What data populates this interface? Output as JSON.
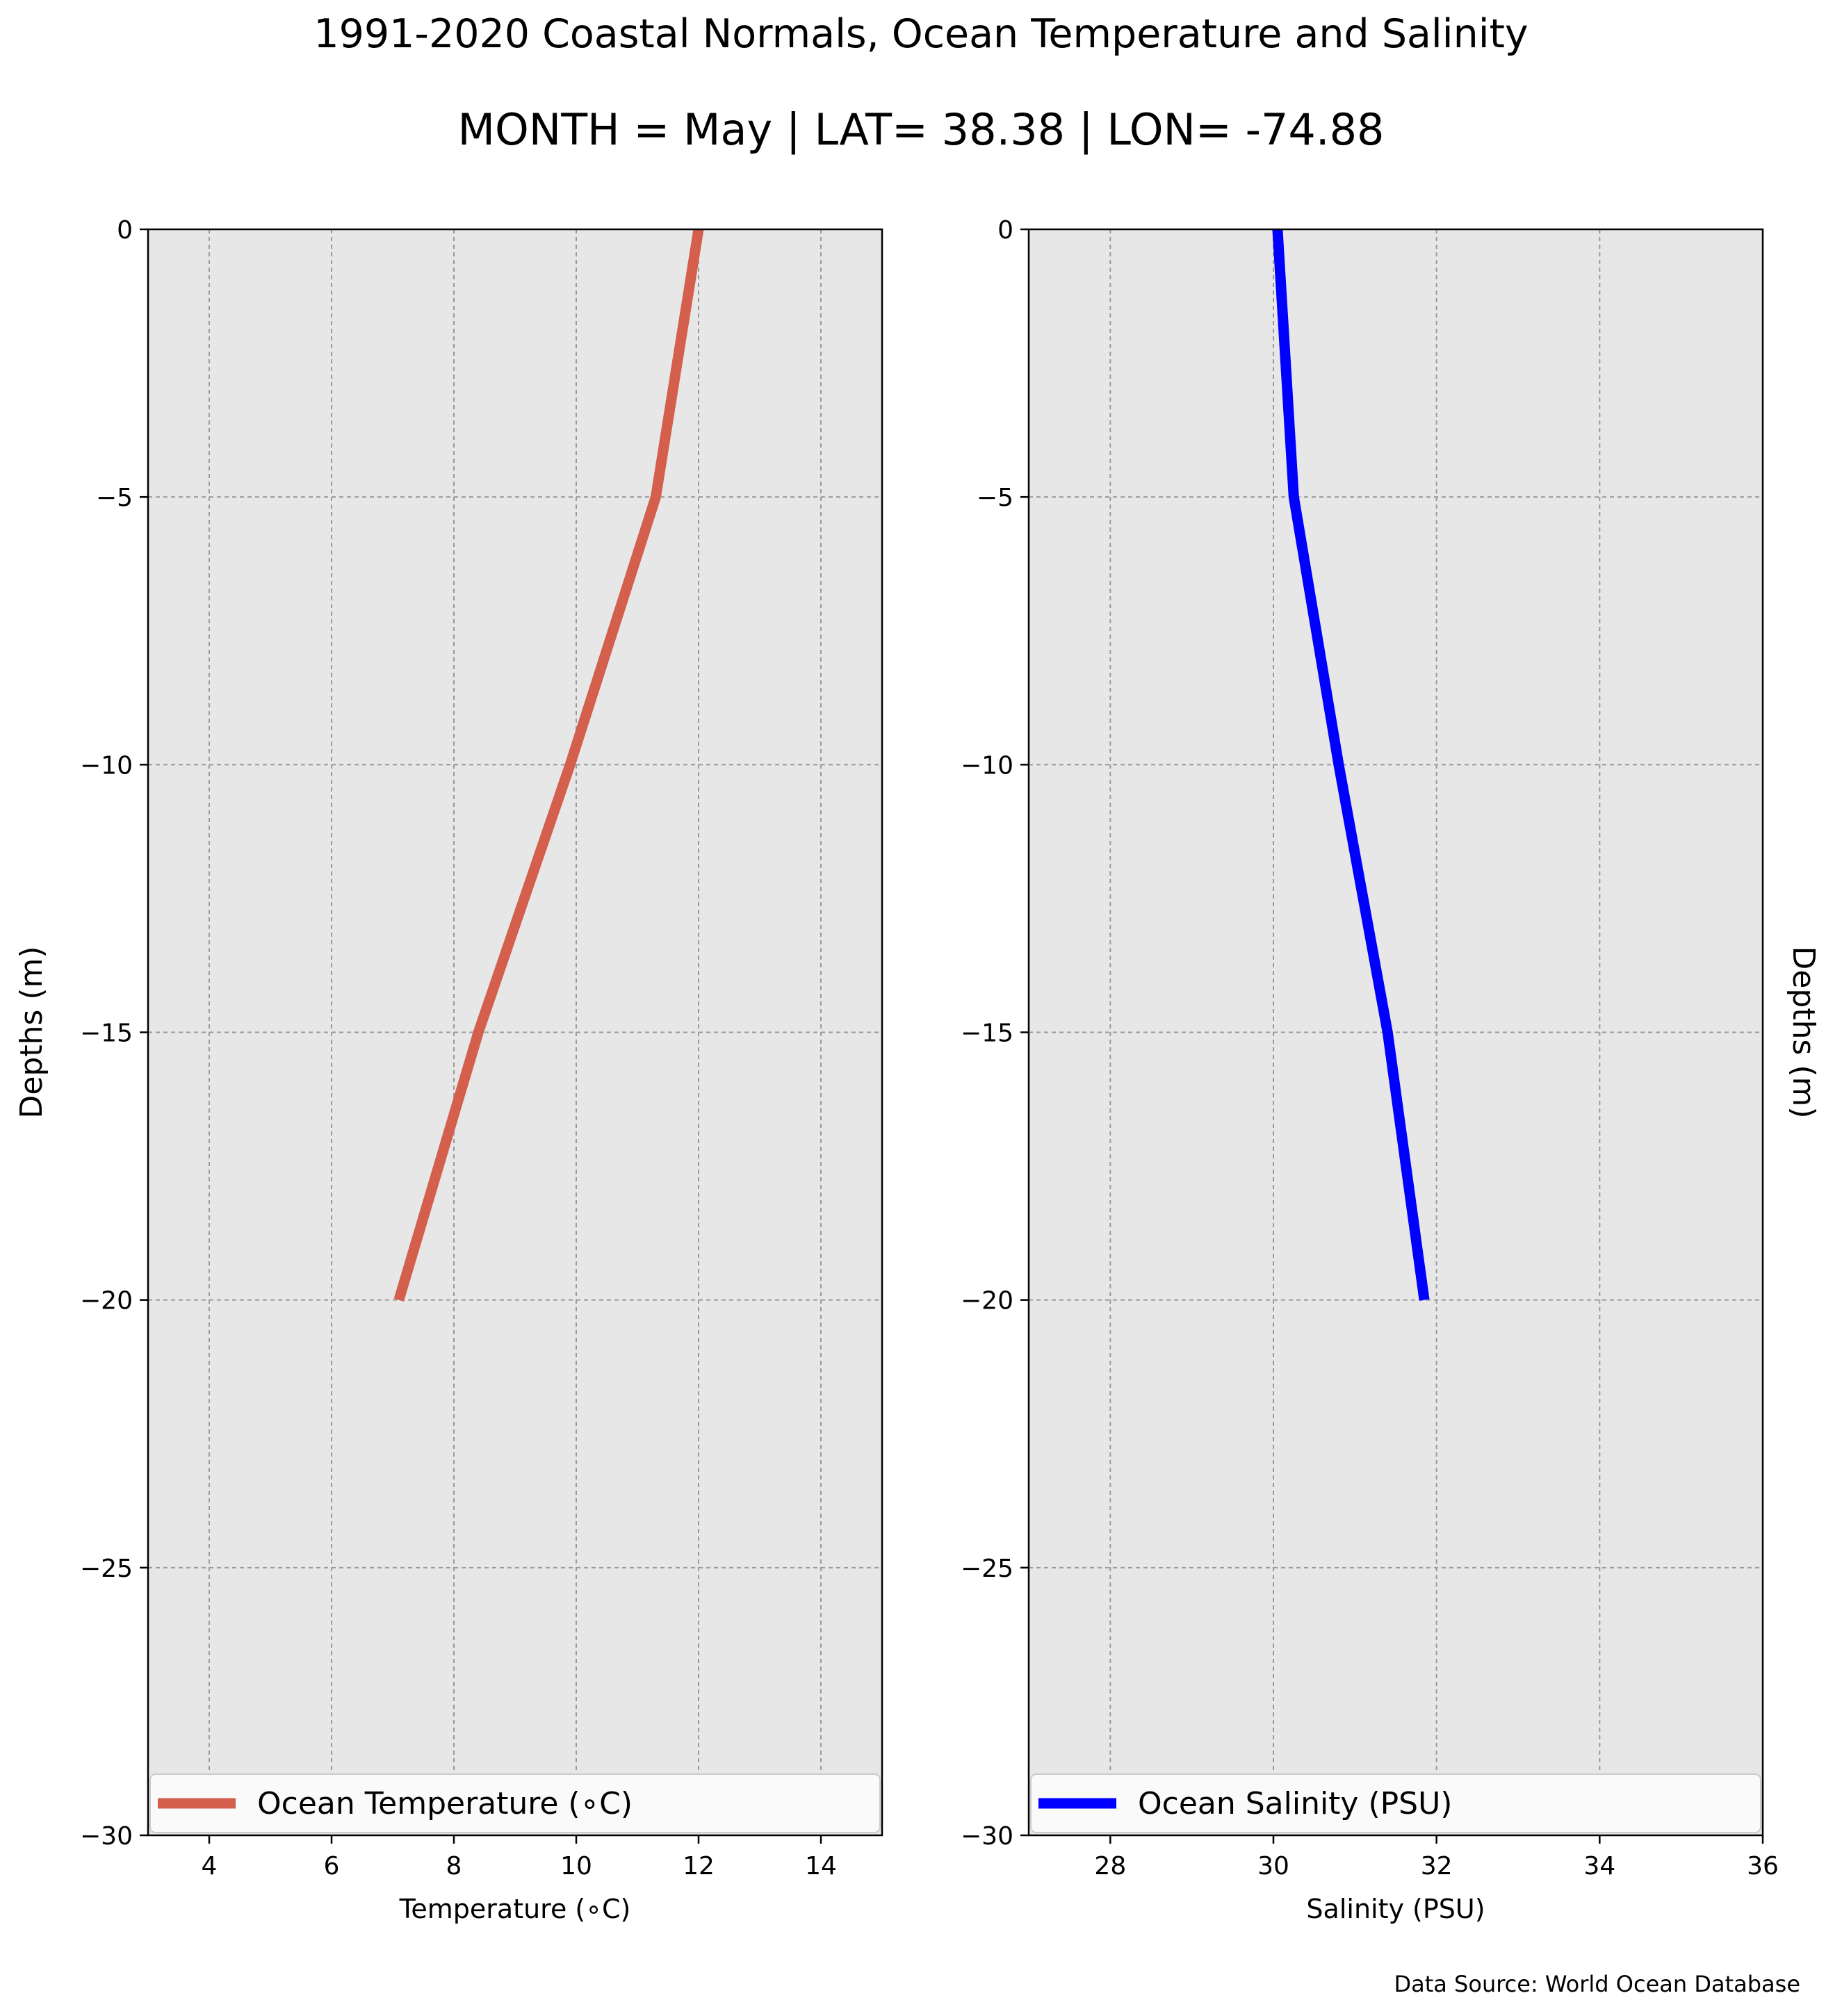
{
  "figure": {
    "title": "1991-2020 Coastal Normals, Ocean Temperature and Salinity",
    "subtitle": "MONTH = May | LAT= 38.38 | LON= -74.88",
    "source_note": "Data Source: World Ocean Database"
  },
  "colors": {
    "panel_bg": "#e7e7e7",
    "grid": "#9a9a9a",
    "temperature_line": "#d35f4c",
    "salinity_line": "#0000ff"
  },
  "chart_data": [
    {
      "type": "line",
      "xlabel": "Temperature ($^\\circ$C)",
      "xlabel_display": "Temperature (∘C)",
      "ylabel": "Depths (m)",
      "xlim": [
        3,
        15
      ],
      "ylim": [
        -30,
        0
      ],
      "xticks": [
        4,
        6,
        8,
        10,
        12,
        14
      ],
      "xtick_labels": [
        "4",
        "6",
        "8",
        "10",
        "12",
        "14"
      ],
      "yticks": [
        0,
        -5,
        -10,
        -15,
        -20,
        -25,
        -30
      ],
      "ytick_labels": [
        "0",
        "−5",
        "−10",
        "−15",
        "−20",
        "−25",
        "−30"
      ],
      "grid": true,
      "legend_position": "bottom",
      "series": [
        {
          "name": "Ocean Temperature (∘C)",
          "color": "#d35f4c",
          "x": [
            12.0,
            11.3,
            9.9,
            8.4,
            7.1
          ],
          "y": [
            0,
            -5,
            -10,
            -15,
            -20
          ]
        }
      ]
    },
    {
      "type": "line",
      "xlabel": "Salinity (PSU)",
      "ylabel": "Depths (m)",
      "xlim": [
        27,
        36
      ],
      "ylim": [
        -30,
        0
      ],
      "xticks": [
        28,
        30,
        32,
        34,
        36
      ],
      "xtick_labels": [
        "28",
        "30",
        "32",
        "34",
        "36"
      ],
      "yticks": [
        0,
        -5,
        -10,
        -15,
        -20,
        -25,
        -30
      ],
      "ytick_labels": [
        "0",
        "−5",
        "−10",
        "−15",
        "−20",
        "−25",
        "−30"
      ],
      "grid": true,
      "legend_position": "bottom",
      "series": [
        {
          "name": "Ocean Salinity (PSU)",
          "color": "#0000ff",
          "x": [
            30.05,
            30.25,
            30.8,
            31.4,
            31.85
          ],
          "y": [
            0,
            -5,
            -10,
            -15,
            -20
          ]
        }
      ]
    }
  ]
}
